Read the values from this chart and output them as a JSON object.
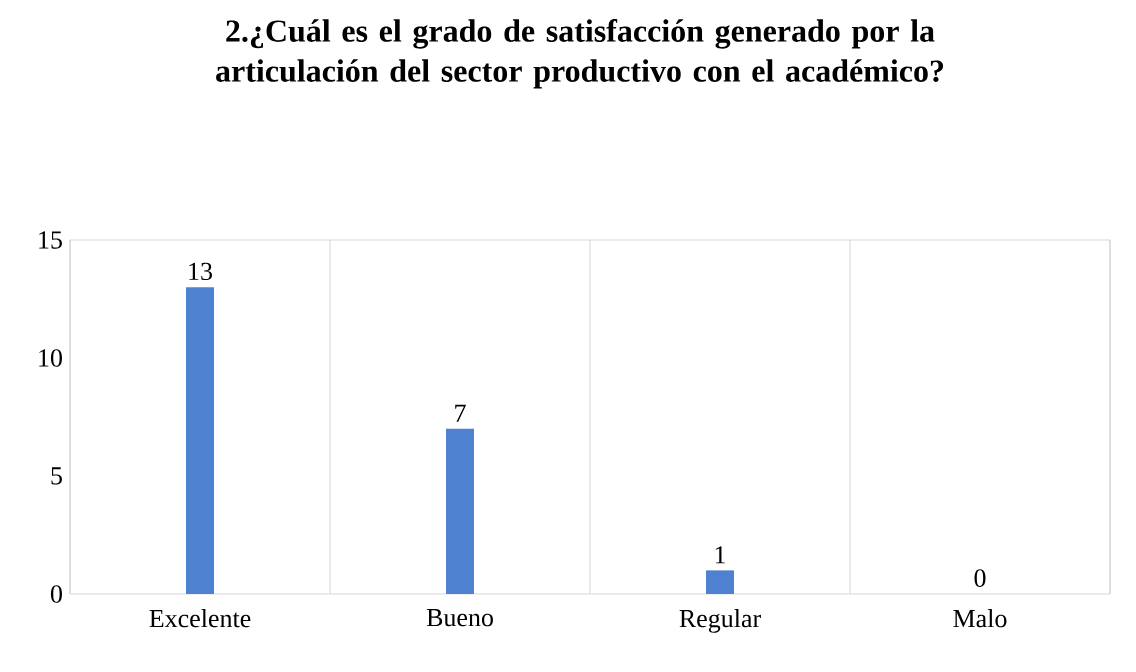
{
  "chart_data": {
    "type": "bar",
    "title": "2.¿Cuál es el grado de satisfacción generado por la articulación del sector productivo con el académico?",
    "categories": [
      "Excelente",
      "Bueno",
      "Regular",
      "Malo"
    ],
    "values": [
      13,
      7,
      1,
      0
    ],
    "color": "#4f81d1",
    "ylim": [
      0,
      15
    ],
    "yticks": [
      0,
      5,
      10,
      15
    ],
    "grid": "x",
    "data_labels": true
  }
}
